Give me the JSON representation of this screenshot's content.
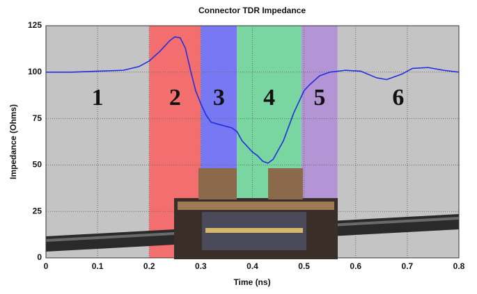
{
  "chart_data": {
    "type": "line",
    "title": "Connector TDR Impedance",
    "x_label": "Time (ns)",
    "y_label": "Impedance (Ohms)",
    "x": [
      0,
      0.05,
      0.1,
      0.15,
      0.18,
      0.2,
      0.22,
      0.24,
      0.25,
      0.26,
      0.27,
      0.28,
      0.29,
      0.3,
      0.31,
      0.32,
      0.34,
      0.36,
      0.37,
      0.38,
      0.4,
      0.41,
      0.42,
      0.43,
      0.44,
      0.46,
      0.48,
      0.5,
      0.51,
      0.53,
      0.55,
      0.58,
      0.61,
      0.64,
      0.66,
      0.69,
      0.71,
      0.74,
      0.77,
      0.8
    ],
    "series": [
      {
        "color": "#1f2de0",
        "values": [
          100,
          100,
          100.5,
          101,
          103,
          106,
          111,
          117,
          119,
          118.5,
          113,
          101,
          90,
          83,
          77,
          73,
          71.5,
          70,
          68,
          63,
          57,
          55,
          52,
          51,
          53,
          63,
          78,
          90,
          93,
          98,
          100,
          101,
          100.5,
          97,
          96,
          99,
          102,
          102.5,
          101,
          100
        ]
      }
    ],
    "regions": [
      {
        "label": "1",
        "start": 0,
        "end": 0.2,
        "color": "#c4c4c4"
      },
      {
        "label": "2",
        "start": 0.2,
        "end": 0.3,
        "color": "#f36f6f"
      },
      {
        "label": "3",
        "start": 0.3,
        "end": 0.37,
        "color": "#7878f2"
      },
      {
        "label": "4",
        "start": 0.37,
        "end": 0.495,
        "color": "#7ad6a0"
      },
      {
        "label": "5",
        "start": 0.495,
        "end": 0.565,
        "color": "#b394d4"
      },
      {
        "label": "6",
        "start": 0.565,
        "end": 0.8,
        "color": "#c4c4c4"
      }
    ],
    "xlim": [
      0,
      0.8
    ],
    "xticks": [
      0,
      0.1,
      0.2,
      0.3,
      0.4,
      0.5,
      0.6,
      0.7,
      0.8
    ],
    "ylim": [
      0,
      125
    ],
    "yticks": [
      0,
      25,
      50,
      75,
      100,
      125
    ],
    "grid": true
  }
}
